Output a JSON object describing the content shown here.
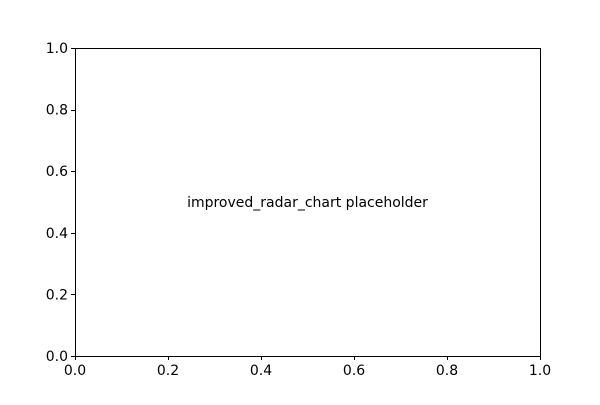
{
  "chart_data": {
    "type": "scatter",
    "title": "",
    "xlabel": "",
    "ylabel": "",
    "xlim": [
      0.0,
      1.0
    ],
    "ylim": [
      0.0,
      1.0
    ],
    "x_ticks": [
      "0.0",
      "0.2",
      "0.4",
      "0.6",
      "0.8",
      "1.0"
    ],
    "y_ticks": [
      "0.0",
      "0.2",
      "0.4",
      "0.6",
      "0.8",
      "1.0"
    ],
    "grid": false,
    "series": [],
    "annotations": [
      {
        "text": "improved_radar_chart placeholder",
        "x": 0.5,
        "y": 0.5
      }
    ]
  }
}
